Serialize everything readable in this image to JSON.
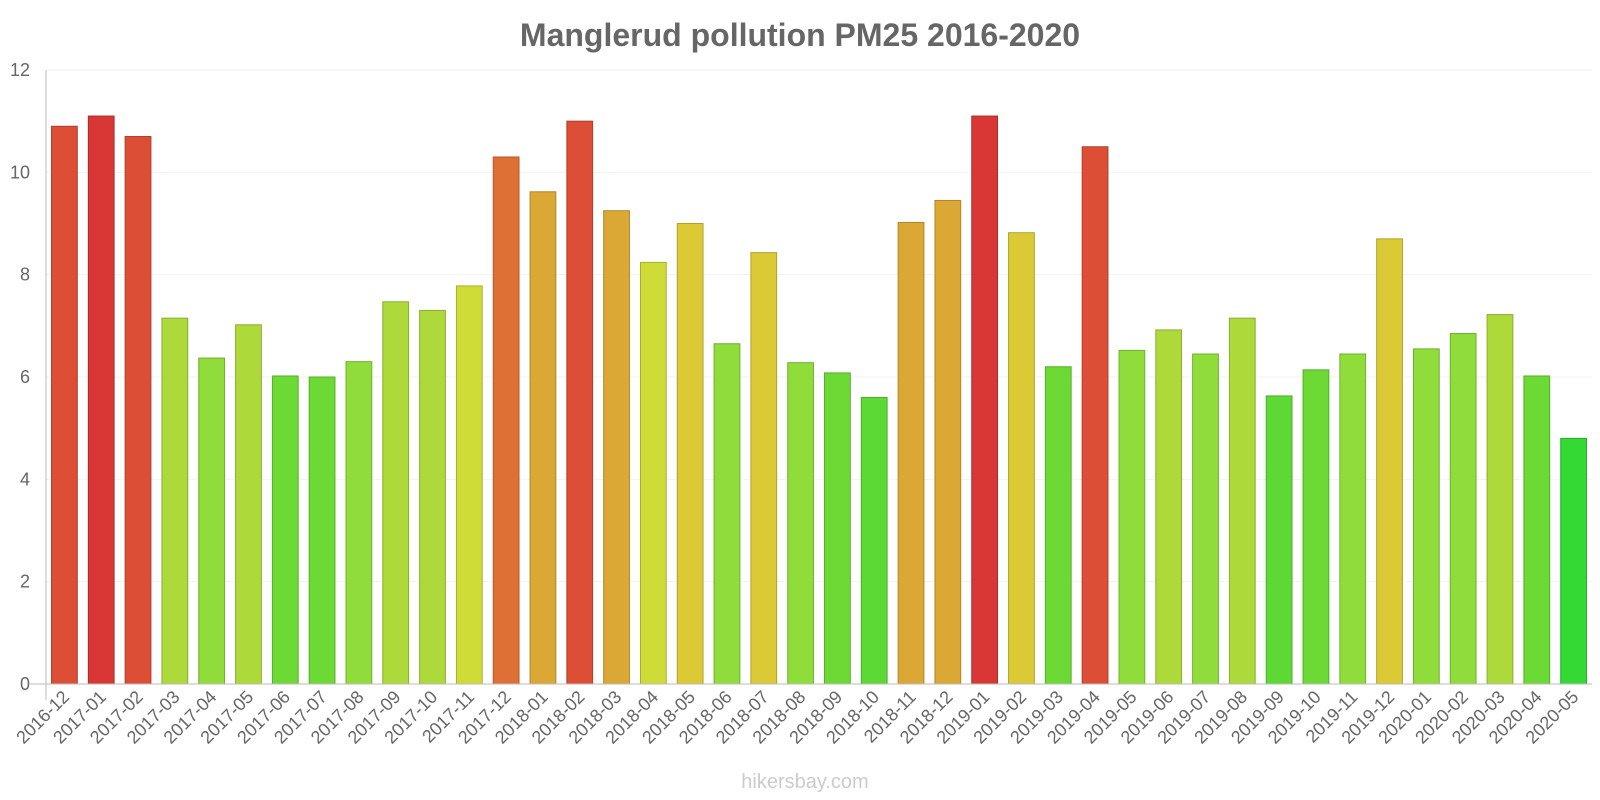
{
  "chart_data": {
    "type": "bar",
    "title": "Manglerud pollution PM25 2016-2020",
    "xlabel": "",
    "ylabel": "",
    "ylim": [
      0,
      12
    ],
    "yticks": [
      0,
      2,
      4,
      6,
      8,
      10,
      12
    ],
    "grid": true,
    "legend": "none",
    "categories": [
      "2016-12",
      "2017-01",
      "2017-02",
      "2017-03",
      "2017-04",
      "2017-05",
      "2017-06",
      "2017-07",
      "2017-08",
      "2017-09",
      "2017-10",
      "2017-11",
      "2017-12",
      "2018-01",
      "2018-02",
      "2018-03",
      "2018-04",
      "2018-05",
      "2018-06",
      "2018-07",
      "2018-08",
      "2018-09",
      "2018-10",
      "2018-11",
      "2018-12",
      "2019-01",
      "2019-02",
      "2019-03",
      "2019-04",
      "2019-05",
      "2019-06",
      "2019-07",
      "2019-08",
      "2019-09",
      "2019-10",
      "2019-11",
      "2019-12",
      "2020-01",
      "2020-02",
      "2020-03",
      "2020-04",
      "2020-05"
    ],
    "values": [
      10.9,
      11.1,
      10.7,
      7.15,
      6.37,
      7.02,
      6.02,
      6.0,
      6.3,
      7.47,
      7.3,
      7.78,
      10.3,
      9.62,
      11.0,
      9.25,
      8.24,
      9.0,
      6.65,
      8.43,
      6.28,
      6.08,
      5.6,
      9.02,
      9.45,
      11.1,
      8.82,
      6.2,
      10.5,
      6.52,
      6.92,
      6.45,
      7.15,
      5.63,
      6.14,
      6.45,
      8.7,
      6.55,
      6.85,
      7.22,
      6.02,
      4.8
    ],
    "colors": [
      "#dc4e36",
      "#d93636",
      "#dc4e36",
      "#add93b",
      "#8fdc3b",
      "#add93b",
      "#6cd934",
      "#6cd934",
      "#8fdc3b",
      "#add93b",
      "#add93b",
      "#cfdc38",
      "#de7035",
      "#dba836",
      "#dc4e36",
      "#dba836",
      "#cfdc38",
      "#dbca36",
      "#8fdc3b",
      "#dbca36",
      "#8fdc3b",
      "#6cd934",
      "#5cd934",
      "#dba836",
      "#dba836",
      "#d93636",
      "#dbca36",
      "#6cd934",
      "#dc4e36",
      "#8fdc3b",
      "#add93b",
      "#8fdc3b",
      "#add93b",
      "#5cd934",
      "#6cd934",
      "#8fdc3b",
      "#dbca36",
      "#8fdc3b",
      "#8fdc3b",
      "#add93b",
      "#6cd934",
      "#34d934"
    ]
  },
  "credit": "hikersbay.com"
}
